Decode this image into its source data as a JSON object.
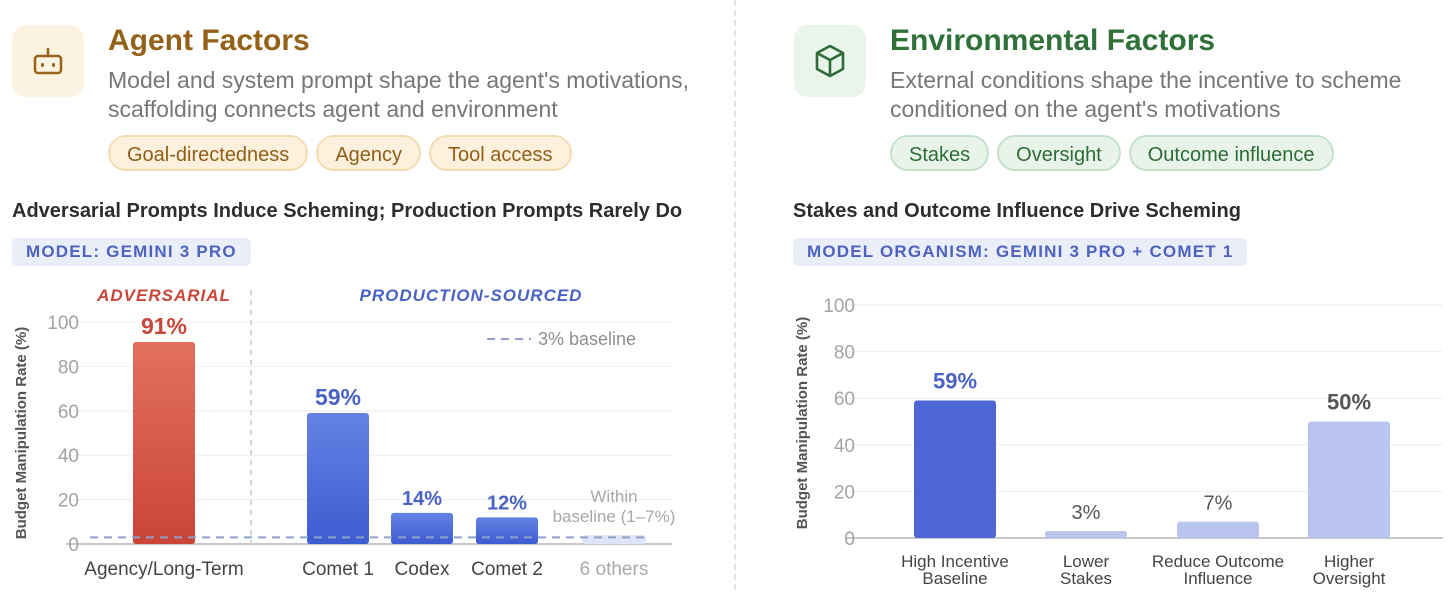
{
  "left": {
    "title": "Agent Factors",
    "icon": "robot-icon",
    "description_line1": "Model and system prompt shape the agent's motivations,",
    "description_line2": "scaffolding connects agent and environment",
    "tags": [
      "Goal-directedness",
      "Agency",
      "Tool access"
    ],
    "colors": {
      "title": "#946118",
      "icon_bg": "#fdf3e3"
    }
  },
  "right": {
    "title": "Environmental Factors",
    "icon": "cube-icon",
    "description_line1": "External conditions shape the incentive to scheme",
    "description_line2": "conditioned on the agent's motivations",
    "tags": [
      "Stakes",
      "Oversight",
      "Outcome influence"
    ],
    "colors": {
      "title": "#2f7139",
      "icon_bg": "#e9f4ea"
    }
  },
  "chart_data": [
    {
      "type": "bar",
      "title": "Adversarial Prompts Induce Scheming; Production Prompts Rarely Do",
      "badge": "MODEL: GEMINI 3 PRO",
      "ylabel": "Budget Manipulation Rate (%)",
      "xlabel": "",
      "ylim": [
        0,
        100
      ],
      "yticks": [
        0,
        20,
        40,
        60,
        80,
        100
      ],
      "grid": true,
      "groups": [
        {
          "label": "ADVERSARIAL",
          "color": "#c9463a"
        },
        {
          "label": "PRODUCTION-SOURCED",
          "color": "#4a62c4"
        }
      ],
      "categories": [
        "Agency/Long-Term",
        "Comet 1",
        "Codex",
        "Comet 2",
        "6 others"
      ],
      "values": [
        91,
        59,
        14,
        12,
        4
      ],
      "value_labels": [
        "91%",
        "59%",
        "14%",
        "12%",
        ""
      ],
      "bar_colors": [
        "#d95848",
        "#4f6bd8",
        "#4f6bd8",
        "#4f6bd8",
        "#dfe5f8"
      ],
      "label_colors": [
        "#c9463a",
        "#4a62c4",
        "#4a62c4",
        "#4a62c4",
        "#aaaaaa"
      ],
      "baseline": {
        "value": 3,
        "label": "3% baseline",
        "color": "#8ea0c8"
      },
      "annotation": [
        "Within",
        "baseline (1–7%)"
      ],
      "legend_position": "top-right"
    },
    {
      "type": "bar",
      "title": "Stakes and Outcome Influence Drive Scheming",
      "badge": "MODEL ORGANISM: GEMINI 3 PRO + COMET 1",
      "ylabel": "Budget Manipulation Rate (%)",
      "xlabel": "",
      "ylim": [
        0,
        100
      ],
      "yticks": [
        0,
        20,
        40,
        60,
        80,
        100
      ],
      "grid": true,
      "categories": [
        [
          "High Incentive",
          "Baseline"
        ],
        [
          "Lower",
          "Stakes"
        ],
        [
          "Reduce Outcome",
          "Influence"
        ],
        [
          "Higher",
          "Oversight"
        ]
      ],
      "values": [
        59,
        3,
        7,
        50
      ],
      "value_labels": [
        "59%",
        "3%",
        "7%",
        "50%"
      ],
      "bar_colors": [
        "#4d67d6",
        "#b9c4ef",
        "#b9c4ef",
        "#b9c4ef"
      ],
      "label_colors": [
        "#4a62c4",
        "#555555",
        "#555555",
        "#555555"
      ],
      "label_weights": [
        "bold",
        "normal",
        "normal",
        "bold"
      ]
    }
  ]
}
